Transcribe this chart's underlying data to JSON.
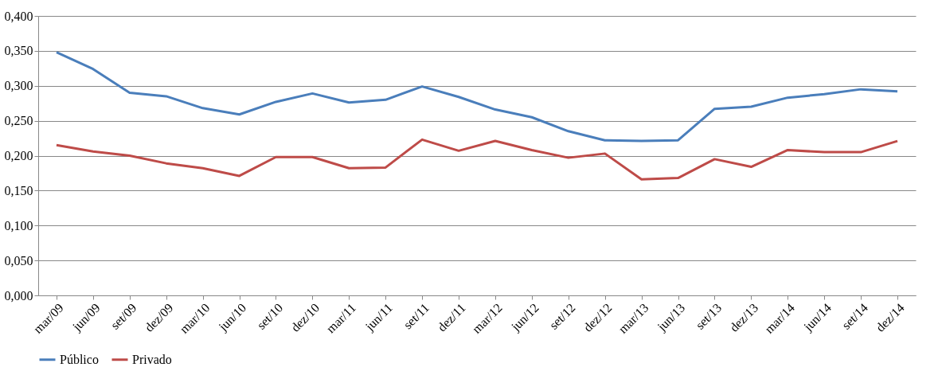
{
  "chart_data": {
    "type": "line",
    "categories": [
      "mar/09",
      "jun/09",
      "set/09",
      "dez/09",
      "mar/10",
      "jun/10",
      "set/10",
      "dez/10",
      "mar/11",
      "jun/11",
      "set/11",
      "dez/11",
      "mar/12",
      "jun/12",
      "set/12",
      "dez/12",
      "mar/13",
      "jun/13",
      "set/13",
      "dez/13",
      "mar/14",
      "jun/14",
      "set/14",
      "dez/14"
    ],
    "series": [
      {
        "name": "Público",
        "color": "#4a7ebb",
        "values": [
          0.348,
          0.324,
          0.29,
          0.285,
          0.268,
          0.259,
          0.277,
          0.289,
          0.276,
          0.28,
          0.299,
          0.284,
          0.266,
          0.255,
          0.235,
          0.222,
          0.221,
          0.222,
          0.267,
          0.27,
          0.283,
          0.288,
          0.295,
          0.292
        ]
      },
      {
        "name": "Privado",
        "color": "#be4b48",
        "values": [
          0.215,
          0.206,
          0.2,
          0.189,
          0.182,
          0.171,
          0.198,
          0.198,
          0.182,
          0.183,
          0.223,
          0.207,
          0.221,
          0.208,
          0.197,
          0.203,
          0.166,
          0.168,
          0.195,
          0.184,
          0.208,
          0.205,
          0.205,
          0.221
        ]
      }
    ],
    "ylim": [
      0,
      0.4
    ],
    "yticks": [
      {
        "value": 0,
        "label": "0,000"
      },
      {
        "value": 0.05,
        "label": "0,050"
      },
      {
        "value": 0.1,
        "label": "0,100"
      },
      {
        "value": 0.15,
        "label": "0,150"
      },
      {
        "value": 0.2,
        "label": "0,200"
      },
      {
        "value": 0.25,
        "label": "0,250"
      },
      {
        "value": 0.3,
        "label": "0,300"
      },
      {
        "value": 0.35,
        "label": "0,350"
      },
      {
        "value": 0.4,
        "label": "0,400"
      }
    ],
    "grid": "y",
    "legend": "bottom",
    "marker": "none",
    "line_style": "solid"
  }
}
